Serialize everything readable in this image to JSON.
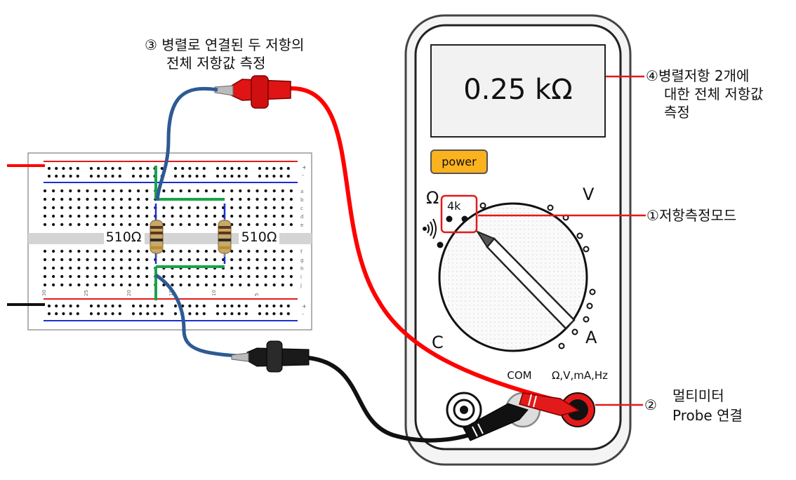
{
  "annotations": {
    "ann3": {
      "num": "③",
      "line1": "병렬로 연결된 두 저항의",
      "line2": "전체 저항값 측정"
    },
    "ann4": {
      "num": "④",
      "line1": "병렬저항 2개에",
      "line2": "대한 전체 저항값",
      "line3": "측정"
    },
    "ann1": {
      "num": "①",
      "text": "저항측정모드"
    },
    "ann2": {
      "num": "②",
      "line1": "멀티미터",
      "line2": "Probe 연결"
    }
  },
  "multimeter": {
    "display": "0.25 kΩ",
    "power_label": "power",
    "dial_labels": {
      "ohm": "Ω",
      "volt": "V",
      "amp": "A",
      "cap": "C",
      "range": "4k"
    },
    "ports": {
      "com": "COM",
      "meas": "Ω,V,mA,Hz"
    }
  },
  "breadboard": {
    "resistor_left": "510Ω",
    "resistor_right": "510Ω",
    "row_letters_top": [
      "a",
      "b",
      "c",
      "d",
      "e"
    ],
    "row_letters_bottom": [
      "f",
      "g",
      "h",
      "i",
      "j"
    ],
    "col_numbers": [
      "30",
      "25",
      "20",
      "15",
      "10",
      "5"
    ],
    "rail_signs": [
      "+",
      "-"
    ]
  },
  "colors": {
    "red_wire": "#ff0000",
    "black_wire": "#111111",
    "blue_wire": "#2e5a94",
    "green_wire": "#1aa34a",
    "power_button": "#fbb21f",
    "annotation_line": "#e31a1a"
  }
}
